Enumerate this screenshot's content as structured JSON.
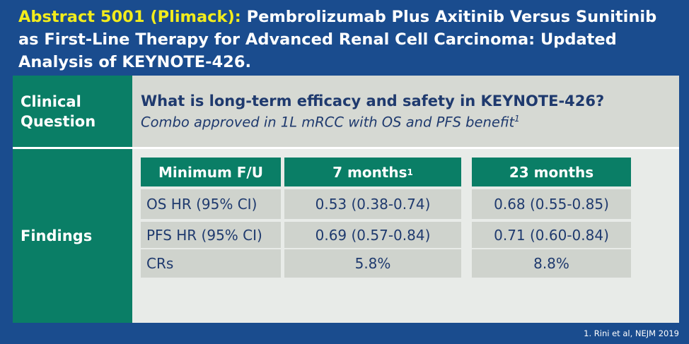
{
  "header": {
    "title_highlight": "Abstract 5001 (Plimack):",
    "title_rest": "Pembrolizumab Plus Axitinib Versus Sunitinib as First-Line Therapy for Advanced Renal Cell Carcinoma: Updated Analysis of KEYNOTE-426."
  },
  "clinical_question": {
    "label": "Clinical Question",
    "question": "What is long-term efficacy and safety in KEYNOTE-426?",
    "context": "Combo approved in 1L mRCC with OS and PFS benefit",
    "context_ref": "1"
  },
  "findings": {
    "label": "Findings",
    "table": {
      "columns": [
        {
          "label": "Minimum F/U",
          "ref": ""
        },
        {
          "label": "7 months",
          "ref": "1"
        },
        {
          "label": "23 months",
          "ref": ""
        }
      ],
      "rows": [
        {
          "metric": "OS HR (95% CI)",
          "values": [
            "0.53 (0.38-0.74)",
            "0.68 (0.55-0.85)"
          ]
        },
        {
          "metric": "PFS HR (95% CI)",
          "values": [
            "0.69 (0.57-0.84)",
            "0.71 (0.60-0.84)"
          ]
        },
        {
          "metric": "CRs",
          "values": [
            "5.8%",
            "8.8%"
          ]
        }
      ]
    }
  },
  "footnote": "1. Rini et al, NEJM 2019",
  "colors": {
    "background": "#1a4c8e",
    "highlight": "#f2ec1c",
    "green": "#0a7e66",
    "cell_gray": "#cfd3cd",
    "text_navy": "#1f3a6e"
  }
}
